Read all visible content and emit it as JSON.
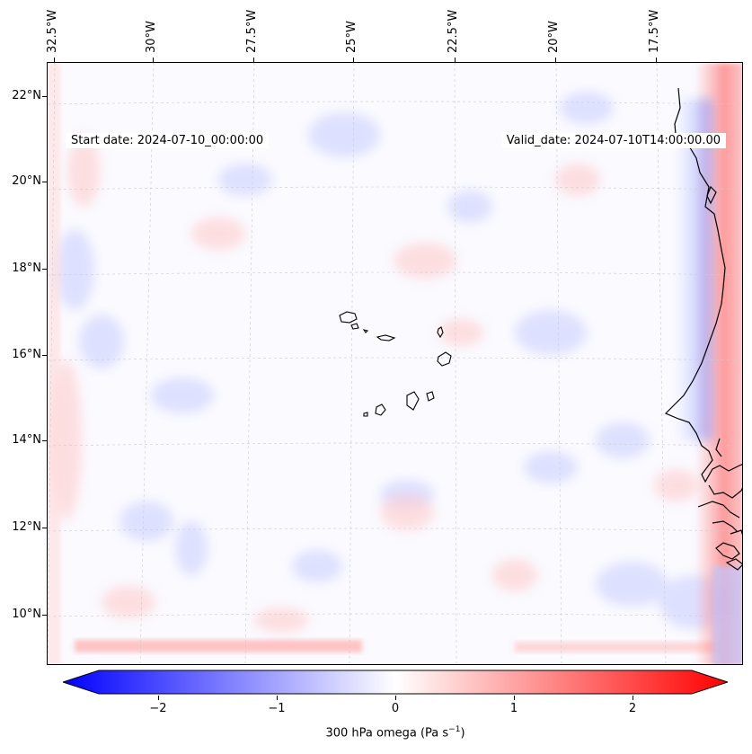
{
  "map": {
    "start_date": "Start date: 2024-07-10_00:00:00",
    "valid_date": "Valid_date: 2024-07-10T14:00:00.00",
    "lon_labels": [
      "32.5°W",
      "30°W",
      "27.5°W",
      "25°W",
      "22.5°W",
      "20°W",
      "17.5°W"
    ],
    "lat_labels": [
      "22°N",
      "20°N",
      "18°N",
      "16°N",
      "14°N",
      "12°N",
      "10°N"
    ],
    "colors": {
      "ocean_base": "#fafaff",
      "negative": "#0000ff",
      "positive": "#ff0000",
      "coastline": "#000000",
      "gridline": "#cccccc"
    }
  },
  "colorbar": {
    "ticks": [
      "−2",
      "−1",
      "0",
      "1",
      "2"
    ],
    "label": "300 hPa omega (Pa s",
    "label_sup": "−1",
    "label_end": ")",
    "cmap": "bwr",
    "range": [
      -2.5,
      2.5
    ]
  }
}
